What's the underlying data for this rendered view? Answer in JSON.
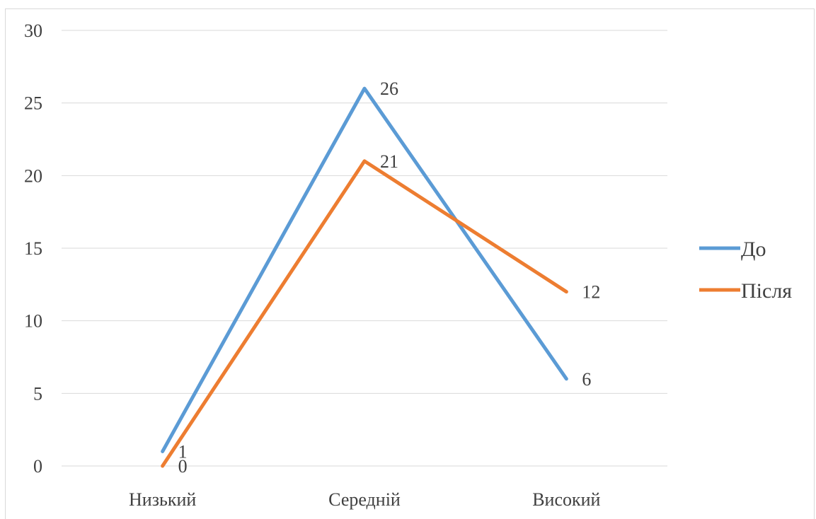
{
  "chart_data": {
    "type": "line",
    "categories": [
      "Низький",
      "Середній",
      "Високий"
    ],
    "series": [
      {
        "name": "До",
        "values": [
          1,
          26,
          6
        ],
        "color": "#5b9bd5"
      },
      {
        "name": "Після",
        "values": [
          0,
          21,
          12
        ],
        "color": "#ed7d31"
      }
    ],
    "ylim": [
      0,
      30
    ],
    "yticks": [
      0,
      5,
      10,
      15,
      20,
      25,
      30
    ],
    "grid": true,
    "legend": "right",
    "title": "",
    "xlabel": "",
    "ylabel": ""
  }
}
